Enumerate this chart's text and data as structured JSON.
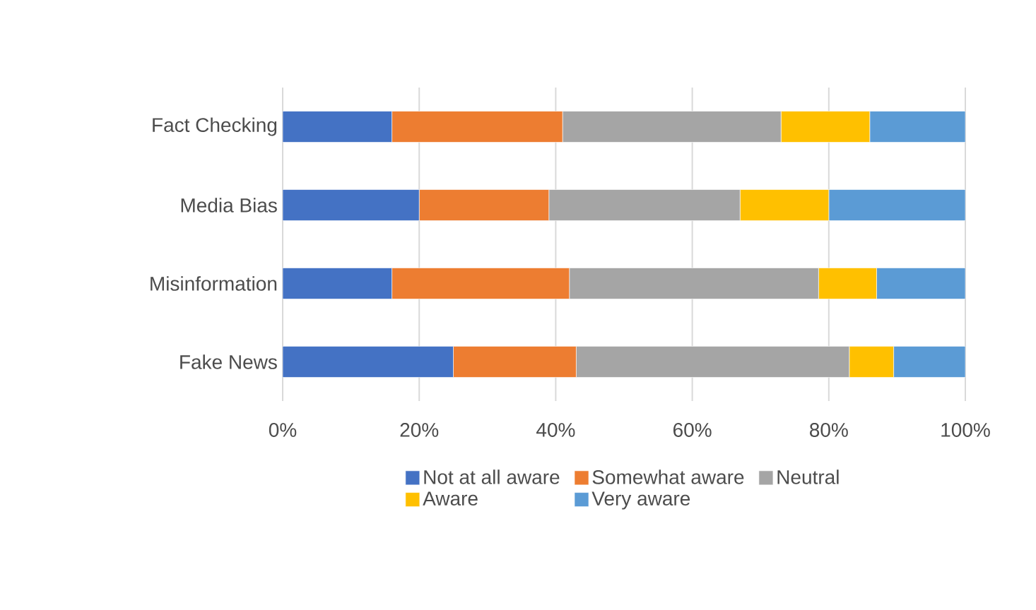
{
  "chart_data": {
    "type": "bar",
    "orientation": "horizontal",
    "stacked": true,
    "categories": [
      "Fact Checking",
      "Media Bias",
      "Misinformation",
      "Fake News"
    ],
    "series": [
      {
        "name": "Not at all aware",
        "color": "#4472c4",
        "values": [
          16,
          20,
          16,
          25
        ]
      },
      {
        "name": "Somewhat aware",
        "color": "#ed7d31",
        "values": [
          25,
          19,
          26,
          18
        ]
      },
      {
        "name": "Neutral",
        "color": "#a5a5a5",
        "values": [
          32,
          28,
          36.5,
          40
        ]
      },
      {
        "name": "Aware",
        "color": "#ffc000",
        "values": [
          13,
          13,
          8.5,
          6.5
        ]
      },
      {
        "name": "Very aware",
        "color": "#5b9bd5",
        "values": [
          14,
          20,
          13,
          10.5
        ]
      }
    ],
    "xlim": [
      0,
      100
    ],
    "xticks": [
      {
        "value": 0,
        "label": "0%"
      },
      {
        "value": 20,
        "label": "20%"
      },
      {
        "value": 40,
        "label": "40%"
      },
      {
        "value": 60,
        "label": "60%"
      },
      {
        "value": 80,
        "label": "80%"
      },
      {
        "value": 100,
        "label": "100%"
      }
    ],
    "grid": "x",
    "legend": "bottom"
  }
}
